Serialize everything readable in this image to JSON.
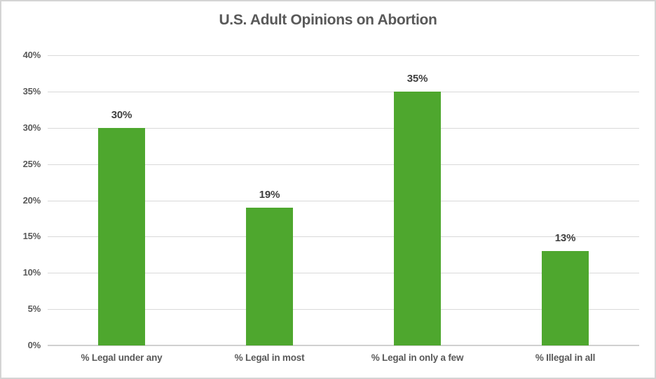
{
  "window": {
    "background": "#ffffff",
    "border_color": "#d4d4d4"
  },
  "chart_data": {
    "type": "bar",
    "title": "U.S. Adult Opinions on Abortion",
    "categories": [
      "% Legal under any",
      "% Legal in most",
      "% Legal in only a few",
      "% Illegal in all"
    ],
    "values": [
      30,
      19,
      35,
      13
    ],
    "value_labels": [
      "30%",
      "19%",
      "35%",
      "13%"
    ],
    "xlabel": "",
    "ylabel": "",
    "ylim": [
      0,
      40
    ],
    "ytick_step": 5,
    "ytick_labels": [
      "0%",
      "5%",
      "10%",
      "15%",
      "20%",
      "25%",
      "30%",
      "35%",
      "40%"
    ],
    "grid": true,
    "legend": "none",
    "bar_color": "#4ea72e",
    "title_color": "#595959",
    "value_label_color": "#3f3f3f",
    "axis_text_color": "#595959",
    "gridline_color": "#d9d9d9"
  }
}
